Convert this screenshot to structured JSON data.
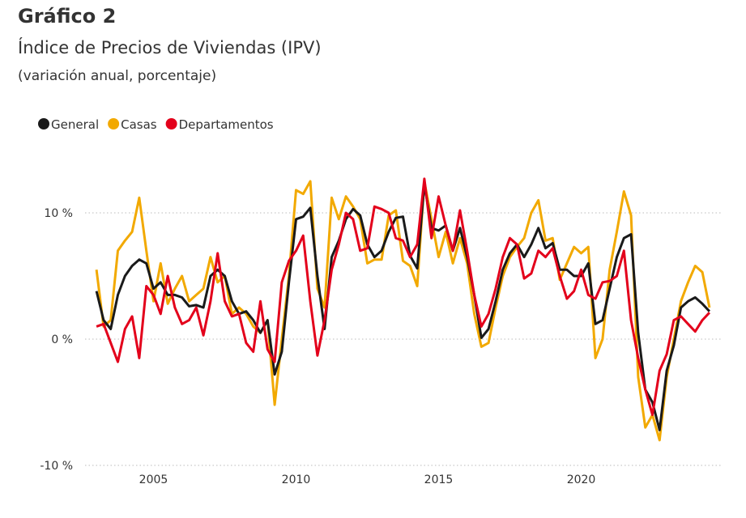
{
  "chart_data": {
    "type": "line",
    "title": "Gráfico 2",
    "subtitle": "Índice de Precios de Viviendas (IPV)",
    "note": "(variación anual, porcentaje)",
    "x": [
      2003,
      2003.25,
      2003.5,
      2003.75,
      2004,
      2004.25,
      2004.5,
      2004.75,
      2005,
      2005.25,
      2005.5,
      2005.75,
      2006,
      2006.25,
      2006.5,
      2006.75,
      2007,
      2007.25,
      2007.5,
      2007.75,
      2008,
      2008.25,
      2008.5,
      2008.75,
      2009,
      2009.25,
      2009.5,
      2009.75,
      2010,
      2010.25,
      2010.5,
      2010.75,
      2011,
      2011.25,
      2011.5,
      2011.75,
      2012,
      2012.25,
      2012.5,
      2012.75,
      2013,
      2013.25,
      2013.5,
      2013.75,
      2014,
      2014.25,
      2014.5,
      2014.75,
      2015,
      2015.25,
      2015.5,
      2015.75,
      2016,
      2016.25,
      2016.5,
      2016.75,
      2017,
      2017.25,
      2017.5,
      2017.75,
      2018,
      2018.25,
      2018.5,
      2018.75,
      2019,
      2019.25,
      2019.5,
      2019.75,
      2020,
      2020.25,
      2020.5,
      2020.75,
      2021,
      2021.25,
      2021.5,
      2021.75,
      2022,
      2022.25,
      2022.5,
      2022.75,
      2023,
      2023.25,
      2023.5,
      2023.75,
      2024,
      2024.25,
      2024.5
    ],
    "series": [
      {
        "name": "General",
        "color": "#1a1a1a",
        "values": [
          3.8,
          1.5,
          0.8,
          3.5,
          5.0,
          5.8,
          6.3,
          6.0,
          4.0,
          4.5,
          3.5,
          3.5,
          3.3,
          2.6,
          2.7,
          2.5,
          5.0,
          5.5,
          5.0,
          3.0,
          2.0,
          2.2,
          1.5,
          0.5,
          1.5,
          -2.8,
          -1.0,
          4.5,
          9.5,
          9.7,
          10.4,
          5.0,
          0.8,
          6.5,
          7.8,
          9.5,
          10.3,
          9.8,
          7.5,
          6.5,
          7.0,
          8.5,
          9.6,
          9.7,
          6.6,
          5.6,
          12.3,
          8.8,
          8.6,
          9.0,
          7.0,
          8.8,
          6.5,
          3.5,
          0.1,
          0.8,
          3.0,
          5.5,
          6.8,
          7.5,
          6.5,
          7.5,
          8.8,
          7.2,
          7.6,
          5.5,
          5.5,
          5.0,
          5.0,
          6.0,
          1.2,
          1.5,
          4.0,
          6.5,
          8.0,
          8.3,
          0.5,
          -4.0,
          -5.0,
          -7.2,
          -2.5,
          -0.5,
          2.5,
          3.0,
          3.3,
          2.8,
          2.2
        ]
      },
      {
        "name": "Casas",
        "color": "#f2a900",
        "values": [
          5.5,
          1.0,
          1.5,
          7.0,
          7.8,
          8.5,
          11.2,
          7.0,
          3.0,
          6.0,
          2.8,
          4.0,
          5.0,
          3.0,
          3.5,
          4.0,
          6.5,
          4.5,
          5.0,
          2.0,
          2.5,
          2.0,
          1.0,
          0.5,
          1.5,
          -5.2,
          0.0,
          5.0,
          11.8,
          11.5,
          12.5,
          4.0,
          2.5,
          11.2,
          9.5,
          11.3,
          10.5,
          9.5,
          6.0,
          6.3,
          6.3,
          9.8,
          10.2,
          6.2,
          5.8,
          4.2,
          12.5,
          9.5,
          6.5,
          8.5,
          6.0,
          8.0,
          6.0,
          2.0,
          -0.6,
          -0.3,
          2.5,
          5.0,
          6.5,
          7.3,
          8.0,
          10.0,
          11.0,
          7.8,
          8.0,
          4.7,
          6.0,
          7.3,
          6.8,
          7.3,
          -1.5,
          0.0,
          5.5,
          8.5,
          11.7,
          9.8,
          -3.0,
          -7.0,
          -6.0,
          -8.0,
          -3.0,
          0.0,
          3.0,
          4.5,
          5.8,
          5.3,
          2.5
        ]
      },
      {
        "name": "Departamentos",
        "color": "#e3001b",
        "values": [
          1.0,
          1.2,
          -0.3,
          -1.8,
          0.8,
          1.8,
          -1.5,
          4.2,
          3.5,
          2.0,
          5.0,
          2.5,
          1.2,
          1.5,
          2.5,
          0.3,
          3.0,
          6.8,
          3.0,
          1.8,
          2.0,
          -0.3,
          -1.0,
          3.0,
          -0.8,
          -1.8,
          4.5,
          6.2,
          7.0,
          8.2,
          3.0,
          -1.3,
          1.5,
          5.5,
          7.5,
          10.0,
          9.5,
          7.0,
          7.2,
          10.5,
          10.3,
          10.0,
          8.0,
          7.8,
          6.5,
          7.5,
          12.7,
          8.0,
          11.3,
          9.0,
          7.0,
          10.2,
          7.0,
          3.5,
          1.0,
          2.0,
          4.0,
          6.5,
          8.0,
          7.5,
          4.8,
          5.2,
          7.0,
          6.5,
          7.2,
          5.0,
          3.2,
          3.8,
          5.5,
          3.5,
          3.2,
          4.5,
          4.6,
          5.0,
          7.0,
          1.5,
          -1.5,
          -4.0,
          -6.0,
          -2.5,
          -1.2,
          1.5,
          1.8,
          1.2,
          0.6,
          1.5,
          2.1
        ]
      }
    ],
    "xlim": [
      2002.6,
      2024.9
    ],
    "xticks": [
      2005,
      2010,
      2015,
      2020
    ],
    "ylim": [
      -10,
      14.5
    ],
    "yticks": [
      {
        "value": -10,
        "label": "-10 %"
      },
      {
        "value": 0,
        "label": "0 %"
      },
      {
        "value": 10,
        "label": "10 %"
      }
    ],
    "grid": true,
    "legend": "top-left"
  }
}
